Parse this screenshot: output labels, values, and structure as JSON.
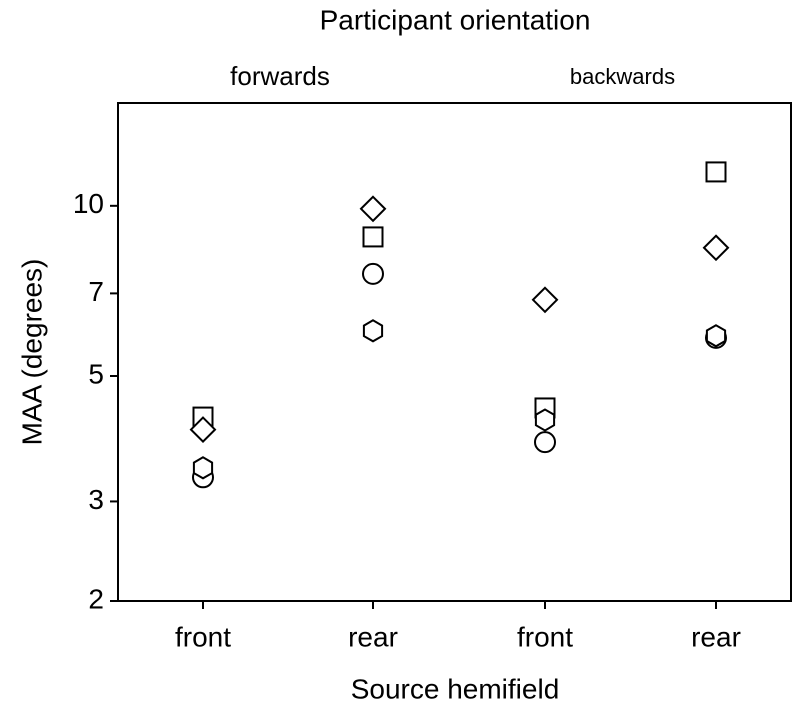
{
  "chart_data": {
    "type": "scatter",
    "title": "Participant orientation",
    "groups": [
      "forwards",
      "backwards"
    ],
    "xlabel": "Source hemifield",
    "ylabel": "MAA (degrees)",
    "categories": [
      "front",
      "rear",
      "front",
      "rear"
    ],
    "ylog": true,
    "ylim": [
      2,
      15.2
    ],
    "yticks": [
      2,
      3,
      5,
      7,
      10
    ],
    "grid": false,
    "series": [
      {
        "marker": "square",
        "color": "#000000",
        "values": [
          4.23,
          8.81,
          4.39,
          11.48
        ]
      },
      {
        "marker": "diamond",
        "color": "#000000",
        "values": [
          4.02,
          9.88,
          6.82,
          8.43
        ]
      },
      {
        "marker": "circle",
        "color": "#000000",
        "values": [
          3.31,
          7.58,
          3.82,
          5.84
        ]
      },
      {
        "marker": "hexagon",
        "color": "#000000",
        "values": [
          3.44,
          6.01,
          4.18,
          5.89
        ]
      }
    ]
  }
}
